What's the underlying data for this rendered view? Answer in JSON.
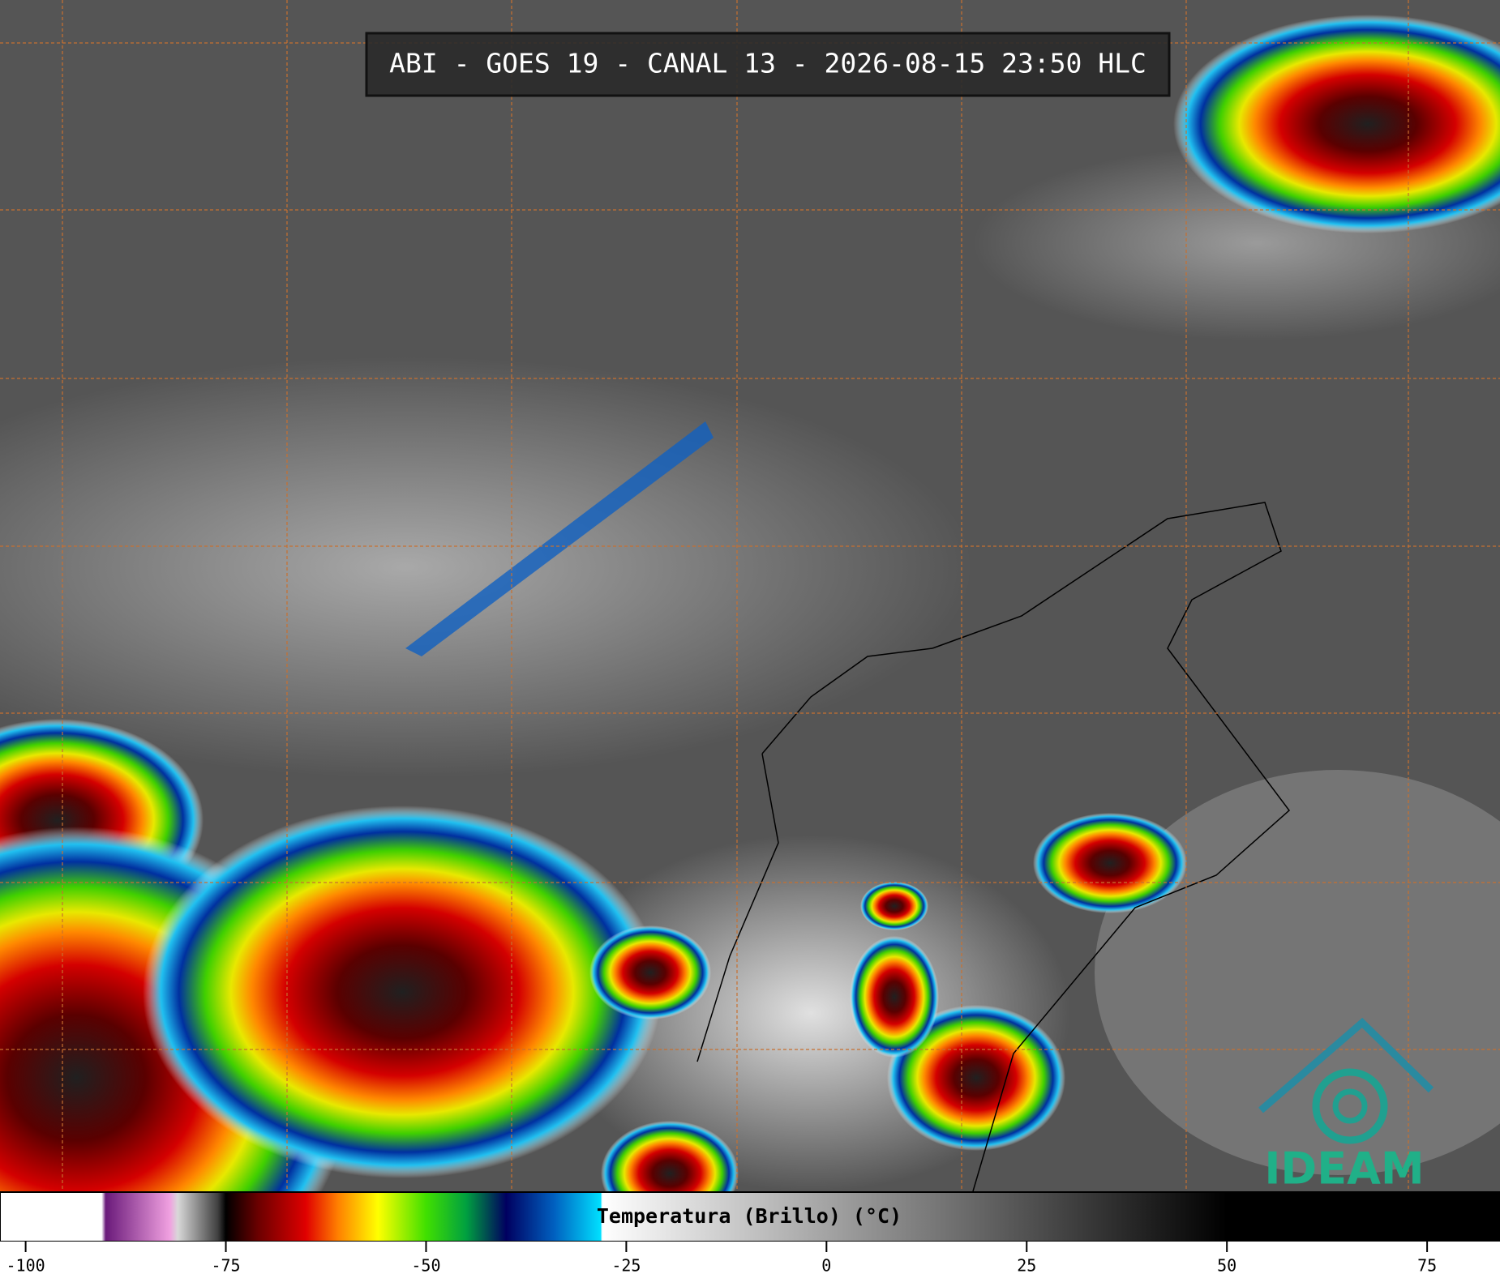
{
  "header": {
    "title": "ABI - GOES 19 - CANAL 13 - 2026-08-15 23:50 HLC"
  },
  "logo": {
    "text": "IDEAM"
  },
  "colorbar": {
    "label": "Temperatura (Brillo) (°C)",
    "xlim": [
      -103.2,
      84.1
    ],
    "ticks": [
      -100,
      -75,
      -50,
      -25,
      0,
      25,
      50,
      75
    ],
    "stops": [
      {
        "value": -103.2,
        "color": "#ffffff"
      },
      {
        "value": -90.5,
        "color": "#ffffff"
      },
      {
        "value": -90,
        "color": "#6a1a7a"
      },
      {
        "value": -82,
        "color": "#f0a0e0"
      },
      {
        "value": -81,
        "color": "#d8d8d8"
      },
      {
        "value": -76,
        "color": "#404040"
      },
      {
        "value": -75,
        "color": "#000000"
      },
      {
        "value": -71,
        "color": "#6a0000"
      },
      {
        "value": -65,
        "color": "#e00000"
      },
      {
        "value": -61,
        "color": "#ff8000"
      },
      {
        "value": -56,
        "color": "#ffff00"
      },
      {
        "value": -50,
        "color": "#40e000"
      },
      {
        "value": -45,
        "color": "#00a040"
      },
      {
        "value": -40,
        "color": "#000060"
      },
      {
        "value": -34,
        "color": "#0060c0"
      },
      {
        "value": -28.2,
        "color": "#00e0ff"
      },
      {
        "value": -28,
        "color": "#ffffff"
      },
      {
        "value": 50,
        "color": "#000000"
      },
      {
        "value": 84.1,
        "color": "#000000"
      }
    ]
  }
}
